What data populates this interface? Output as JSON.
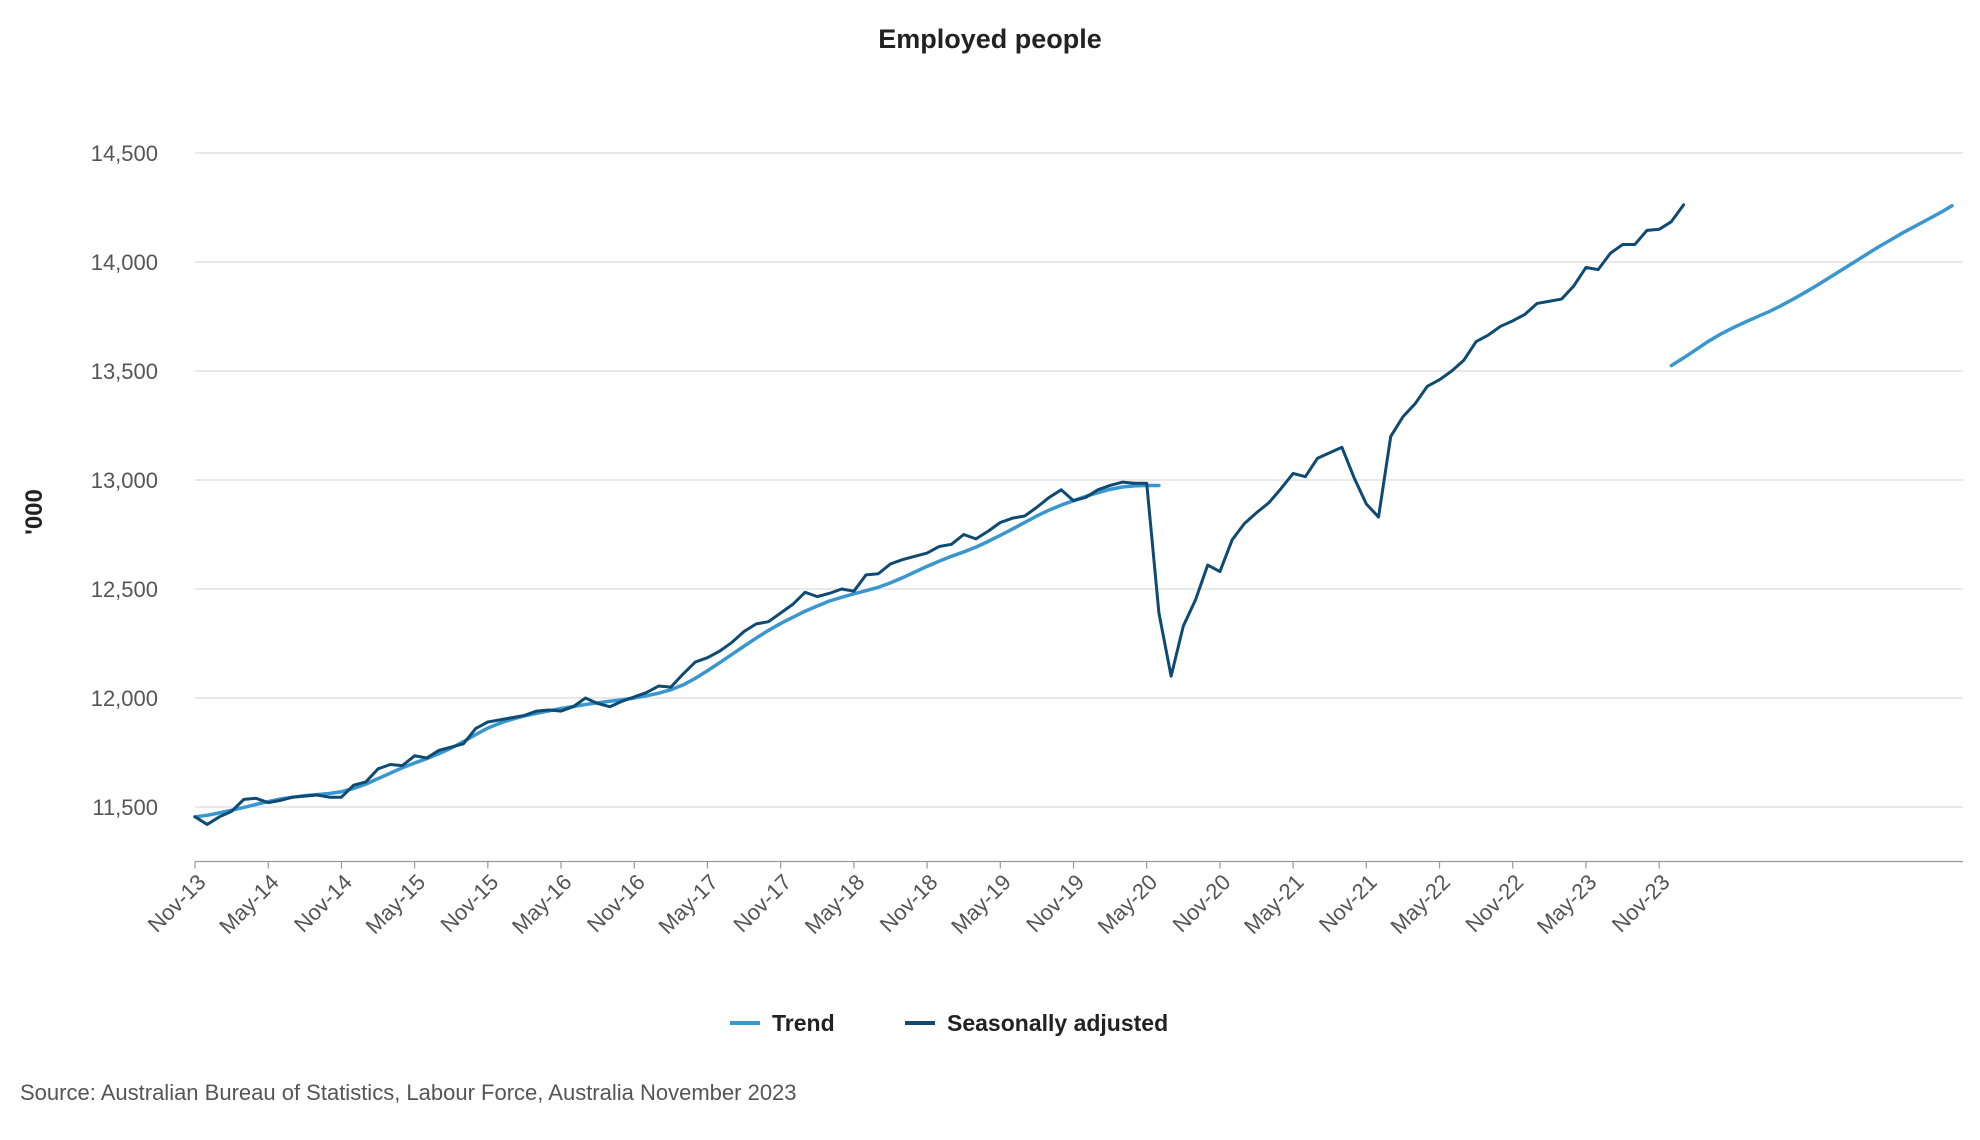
{
  "chart_data": {
    "type": "line",
    "title": "Employed people",
    "ylabel": "'000",
    "xlabel": "",
    "ylim": [
      11250,
      14750
    ],
    "y_ticks": [
      "11,500",
      "12,000",
      "12,500",
      "13,000",
      "13,500",
      "14,000",
      "14,500"
    ],
    "y_tick_values": [
      11500,
      12000,
      12500,
      13000,
      13500,
      14000,
      14500
    ],
    "x_tick_labels": [
      "Nov-13",
      "May-14",
      "Nov-14",
      "May-15",
      "Nov-15",
      "May-16",
      "Nov-16",
      "May-17",
      "Nov-17",
      "May-18",
      "Nov-18",
      "May-19",
      "Nov-19",
      "May-20",
      "Nov-20",
      "May-21",
      "Nov-21",
      "May-22",
      "Nov-22",
      "May-23",
      "Nov-23"
    ],
    "x_start": "Nov-13",
    "x_end": "Nov-23",
    "grid": true,
    "legend_position": "bottom",
    "series": [
      {
        "name": "Trend",
        "color": "#3a96cf",
        "values": [
          11455,
          11462,
          11473,
          11485,
          11498,
          11512,
          11525,
          11537,
          11545,
          11552,
          11557,
          11562,
          11570,
          11585,
          11605,
          11630,
          11655,
          11680,
          11702,
          11722,
          11745,
          11770,
          11800,
          11832,
          11862,
          11885,
          11903,
          11918,
          11930,
          11941,
          11952,
          11961,
          11970,
          11978,
          11985,
          11992,
          12000,
          12010,
          12022,
          12038,
          12060,
          12090,
          12125,
          12162,
          12200,
          12238,
          12275,
          12310,
          12342,
          12370,
          12398,
          12422,
          12445,
          12462,
          12478,
          12492,
          12508,
          12528,
          12552,
          12578,
          12604,
          12628,
          12650,
          12670,
          12692,
          12718,
          12746,
          12775,
          12805,
          12835,
          12862,
          12885,
          12905,
          12925,
          12942,
          12957,
          12968,
          12973,
          12975,
          12975,
          null,
          null,
          null,
          null,
          null,
          null,
          null,
          null,
          null,
          null,
          null,
          null,
          null,
          null,
          null,
          null,
          null,
          null,
          null,
          null,
          null,
          null,
          null,
          null,
          null,
          null,
          null,
          null,
          null,
          null,
          null,
          null,
          null,
          null,
          null,
          null,
          null,
          null,
          null,
          null,
          null,
          13525,
          13560,
          13597,
          13635,
          13668,
          13697,
          13723,
          13748,
          13772,
          13800,
          13830,
          13862,
          13895,
          13930,
          13965,
          14000,
          14035,
          14070,
          14102,
          14135,
          14165,
          14195,
          14225,
          14258
        ]
      },
      {
        "name": "Seasonally adjusted",
        "color": "#0e4a72",
        "values": [
          11455,
          11420,
          11455,
          11480,
          11535,
          11540,
          11520,
          11530,
          11545,
          11550,
          11555,
          11545,
          11545,
          11600,
          11615,
          11675,
          11695,
          11690,
          11735,
          11725,
          11760,
          11775,
          11790,
          11860,
          11890,
          11900,
          11910,
          11920,
          11940,
          11945,
          11940,
          11960,
          12000,
          11975,
          11960,
          11985,
          12005,
          12025,
          12055,
          12050,
          12110,
          12165,
          12185,
          12215,
          12255,
          12305,
          12340,
          12350,
          12390,
          12430,
          12485,
          12465,
          12480,
          12500,
          12490,
          12565,
          12570,
          12615,
          12635,
          12650,
          12665,
          12695,
          12705,
          12750,
          12730,
          12765,
          12805,
          12825,
          12835,
          12875,
          12920,
          12955,
          12905,
          12920,
          12955,
          12975,
          12990,
          12985,
          12985,
          12390,
          12100,
          12330,
          12450,
          12610,
          12580,
          12725,
          12800,
          12850,
          12895,
          12960,
          13030,
          13015,
          13100,
          13125,
          13150,
          13010,
          12890,
          12830,
          13200,
          13290,
          13350,
          13430,
          13460,
          13500,
          13550,
          13635,
          13665,
          13705,
          13730,
          13760,
          13810,
          13820,
          13830,
          13890,
          13975,
          13965,
          14040,
          14080,
          14080,
          14145,
          14150,
          14185,
          14262
        ]
      }
    ]
  },
  "legend": {
    "items": [
      {
        "label": "Trend",
        "color": "#3a96cf"
      },
      {
        "label": "Seasonally adjusted",
        "color": "#0e4a72"
      }
    ]
  },
  "source": "Source: Australian Bureau of Statistics, Labour Force, Australia November 2023"
}
